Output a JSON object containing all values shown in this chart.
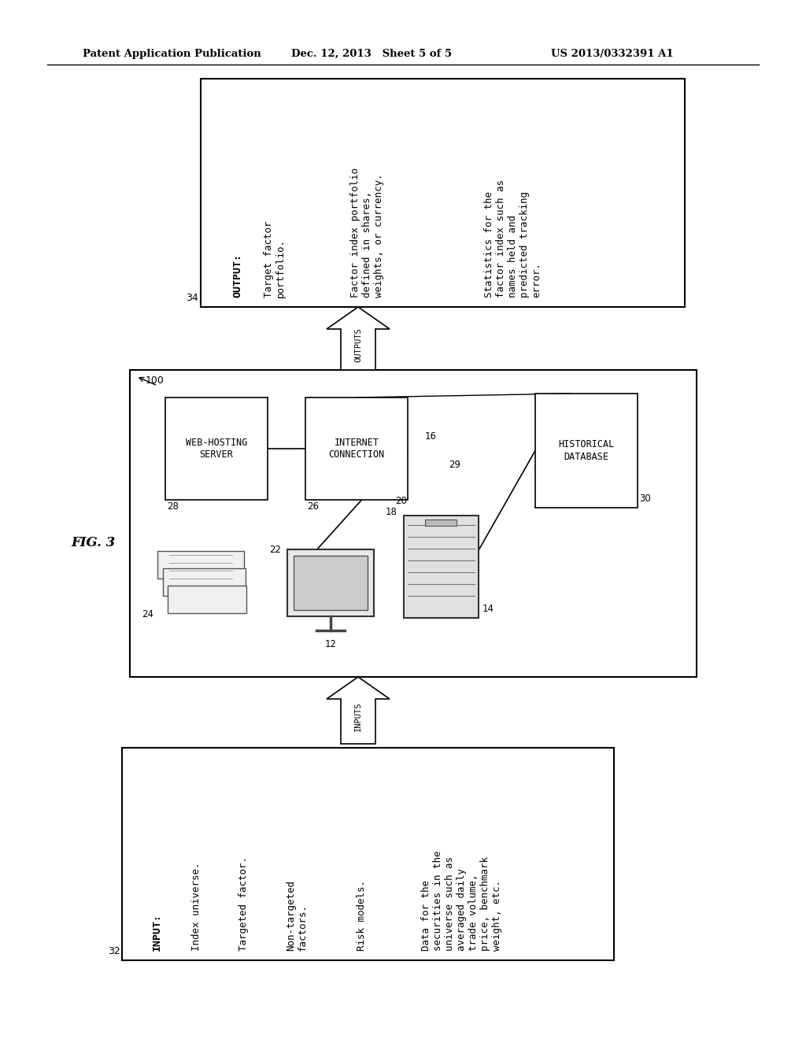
{
  "bg_color": "#ffffff",
  "header_left": "Patent Application Publication",
  "header_center": "Dec. 12, 2013   Sheet 5 of 5",
  "header_right": "US 2013/0332391 A1",
  "fig_label": "FIG. 3",
  "output_box_label": "34",
  "output_title": "OUTPUT:",
  "output_col1": "Target factor\nportfolio.",
  "output_col2": "Factor index portfolio\ndefined in shares,\nweights, or currency.",
  "output_col3": "Statistics for the\nfactor index such as\nnames held and\npredicted tracking\nerror.",
  "input_box_label": "32",
  "input_title": "INPUT:",
  "input_col1": "Index universe.",
  "input_col2": "Targeted factor.",
  "input_col3": "Non-targeted\nfactors.",
  "input_col4": "Risk models.",
  "input_col5": "Data for the\nsecurities in the\nuniverse such as\naveraged daily\ntrade volume,\nprice, benchmark\nweight, etc.",
  "outputs_label": "OUTPUTS",
  "inputs_label": "INPUTS",
  "system_label": "100",
  "wb_label": "28",
  "wb_text": "WEB-HOSTING\nSERVER",
  "ic_label": "26",
  "ic_text": "INTERNET\nCONNECTION",
  "hd_label": "30",
  "hd_text": "HISTORICAL\nDATABASE",
  "lbl_16": "16",
  "lbl_22": "22",
  "lbl_24": "24",
  "lbl_12": "12",
  "lbl_20": "20",
  "lbl_18": "18",
  "lbl_29": "29",
  "lbl_14": "14"
}
